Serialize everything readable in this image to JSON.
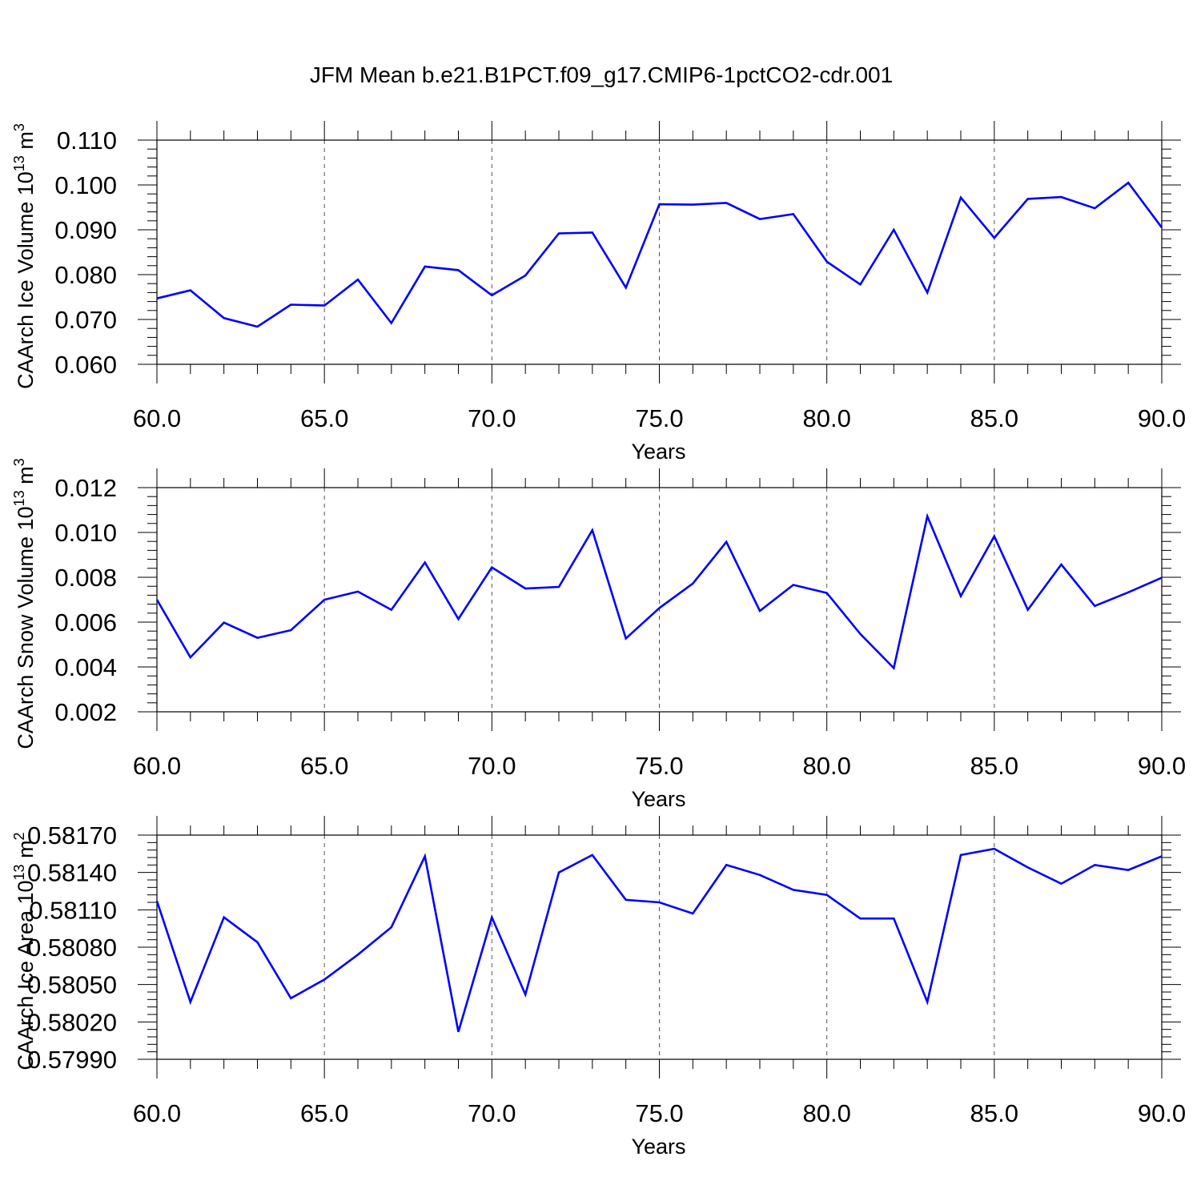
{
  "title": "JFM Mean b.e21.B1PCT.f09_g17.CMIP6-1pctCO2-cdr.001",
  "colors": {
    "series": "#0000ff",
    "axis": "#000000",
    "grid": "#555555"
  },
  "chart_data": [
    {
      "type": "line",
      "xlabel": "Years",
      "ylabel": "CAArch Ice Volume 10",
      "ylabel_sup1": "13",
      "ylabel_unit": " m",
      "ylabel_sup2": "3",
      "xlim": [
        60,
        90
      ],
      "ylim": [
        0.06,
        0.11
      ],
      "xticks": [
        60,
        65,
        70,
        75,
        80,
        85,
        90
      ],
      "xtick_labels": [
        "60.0",
        "65.0",
        "70.0",
        "75.0",
        "80.0",
        "85.0",
        "90.0"
      ],
      "yticks": [
        0.06,
        0.07,
        0.08,
        0.09,
        0.1,
        0.11
      ],
      "ytick_labels": [
        "0.060",
        "0.070",
        "0.080",
        "0.090",
        "0.100",
        "0.110"
      ],
      "grid": "vertical dashed at major x ticks",
      "x": [
        60,
        61,
        62,
        63,
        64,
        65,
        66,
        67,
        68,
        69,
        70,
        71,
        72,
        73,
        74,
        75,
        76,
        77,
        78,
        79,
        80,
        81,
        82,
        83,
        84,
        85,
        86,
        87,
        88,
        89,
        90
      ],
      "values": [
        0.0747,
        0.0765,
        0.0703,
        0.0684,
        0.0733,
        0.0731,
        0.0789,
        0.0692,
        0.0818,
        0.081,
        0.0754,
        0.0798,
        0.0892,
        0.0894,
        0.0771,
        0.0957,
        0.0956,
        0.096,
        0.0924,
        0.0935,
        0.0829,
        0.0778,
        0.09,
        0.076,
        0.0972,
        0.0882,
        0.0969,
        0.0973,
        0.0948,
        0.1005,
        0.0905
      ]
    },
    {
      "type": "line",
      "xlabel": "Years",
      "ylabel": "CAArch Snow Volume 10",
      "ylabel_sup1": "13",
      "ylabel_unit": " m",
      "ylabel_sup2": "3",
      "xlim": [
        60,
        90
      ],
      "ylim": [
        0.002,
        0.012
      ],
      "xticks": [
        60,
        65,
        70,
        75,
        80,
        85,
        90
      ],
      "xtick_labels": [
        "60.0",
        "65.0",
        "70.0",
        "75.0",
        "80.0",
        "85.0",
        "90.0"
      ],
      "yticks": [
        0.002,
        0.004,
        0.006,
        0.008,
        0.01,
        0.012
      ],
      "ytick_labels": [
        "0.002",
        "0.004",
        "0.006",
        "0.008",
        "0.010",
        "0.012"
      ],
      "grid": "vertical dashed at major x ticks",
      "x": [
        60,
        61,
        62,
        63,
        64,
        65,
        66,
        67,
        68,
        69,
        70,
        71,
        72,
        73,
        74,
        75,
        76,
        77,
        78,
        79,
        80,
        81,
        82,
        83,
        84,
        85,
        86,
        87,
        88,
        89,
        90
      ],
      "values": [
        0.007,
        0.00443,
        0.00598,
        0.0053,
        0.00564,
        0.007,
        0.00736,
        0.00655,
        0.00866,
        0.00614,
        0.00844,
        0.0075,
        0.00757,
        0.0101,
        0.00527,
        0.00663,
        0.00772,
        0.00958,
        0.0065,
        0.00766,
        0.0073,
        0.00547,
        0.00395,
        0.01072,
        0.00716,
        0.00983,
        0.00655,
        0.00857,
        0.00672,
        0.00733,
        0.00798
      ]
    },
    {
      "type": "line",
      "xlabel": "Years",
      "ylabel": "CAArch Ice Area 10",
      "ylabel_sup1": "13",
      "ylabel_unit": " m",
      "ylabel_sup2": "2",
      "xlim": [
        60,
        90
      ],
      "ylim": [
        0.5799,
        0.5817
      ],
      "xticks": [
        60,
        65,
        70,
        75,
        80,
        85,
        90
      ],
      "xtick_labels": [
        "60.0",
        "65.0",
        "70.0",
        "75.0",
        "80.0",
        "85.0",
        "90.0"
      ],
      "yticks": [
        0.5799,
        0.5802,
        0.5805,
        0.5808,
        0.5811,
        0.5814,
        0.5817
      ],
      "ytick_labels": [
        "0.57990",
        "0.58020",
        "0.58050",
        "0.58080",
        "0.58110",
        "0.58140",
        "0.58170"
      ],
      "grid": "vertical dashed at major x ticks",
      "x": [
        60,
        61,
        62,
        63,
        64,
        65,
        66,
        67,
        68,
        69,
        70,
        71,
        72,
        73,
        74,
        75,
        76,
        77,
        78,
        79,
        80,
        81,
        82,
        83,
        84,
        85,
        86,
        87,
        88,
        89,
        90
      ],
      "values": [
        0.58117,
        0.58036,
        0.58104,
        0.58084,
        0.58039,
        0.58054,
        0.58074,
        0.58096,
        0.58153,
        0.58012,
        0.58104,
        0.58042,
        0.5814,
        0.58154,
        0.58118,
        0.58116,
        0.58107,
        0.58146,
        0.58138,
        0.58126,
        0.58122,
        0.58103,
        0.58103,
        0.58036,
        0.58154,
        0.58159,
        0.58144,
        0.58131,
        0.58146,
        0.58142,
        0.58153
      ]
    }
  ]
}
